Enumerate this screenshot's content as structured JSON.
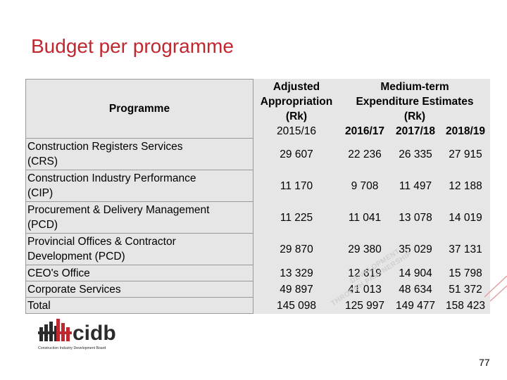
{
  "title": "Budget per programme",
  "table": {
    "header": {
      "programme": "Programme",
      "adjusted": [
        "Adjusted",
        "Appropriation",
        "(Rk)"
      ],
      "mtef": [
        "Medium-term",
        "Expenditure Estimates",
        "(Rk)"
      ],
      "years": [
        "2015/16",
        "2016/17",
        "2017/18",
        "2018/19"
      ]
    },
    "rows": [
      {
        "programme": [
          "Construction Registers Services",
          "(CRS)"
        ],
        "values": [
          "29 607",
          "22 236",
          "26 335",
          "27 915"
        ]
      },
      {
        "programme": [
          "Construction Industry Performance",
          "(CIP)"
        ],
        "values": [
          "11 170",
          "9 708",
          "11 497",
          "12 188"
        ]
      },
      {
        "programme": [
          "Procurement & Delivery Management",
          "(PCD)"
        ],
        "values": [
          "11 225",
          "11 041",
          "13 078",
          "14 019"
        ]
      },
      {
        "programme": [
          "Provincial Offices & Contractor",
          "Development (PCD)"
        ],
        "values": [
          "29 870",
          "29 380",
          "35 029",
          "37 131"
        ]
      },
      {
        "programme": [
          "CEO's Office"
        ],
        "values": [
          "13 329",
          "12 619",
          "14 904",
          "15 798"
        ]
      },
      {
        "programme": [
          "Corporate Services"
        ],
        "values": [
          "49 897",
          "41 013",
          "48 634",
          "51 372"
        ]
      },
      {
        "programme": [
          "Total"
        ],
        "values": [
          "145 098",
          "125 997",
          "149 477",
          "158 423"
        ]
      }
    ]
  },
  "logo": {
    "word": "cidb",
    "tagline": "Construction Industry Development Board"
  },
  "watermark": [
    "DEVELOPMENT",
    "THROUGH PARTNERSHIP"
  ],
  "slide_number": "77",
  "colors": {
    "title": "#c0282f",
    "table_bg": "#e6e6e6",
    "logo_red": "#c0282f",
    "logo_dark": "#2b2b2b"
  }
}
